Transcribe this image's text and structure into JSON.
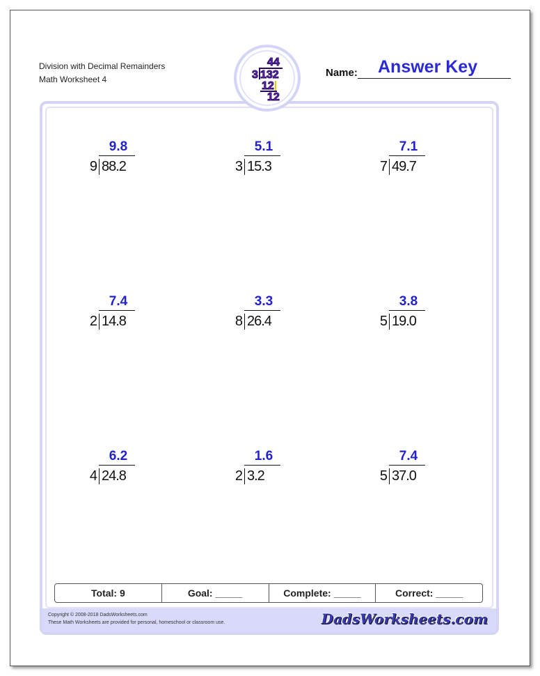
{
  "header": {
    "title": "Division with Decimal Remainders",
    "subtitle": "Math Worksheet 4",
    "name_label": "Name:",
    "answer_key": "Answer Key"
  },
  "problems": [
    {
      "divisor": "9",
      "dividend": "88.2",
      "quotient": "9.8"
    },
    {
      "divisor": "3",
      "dividend": "15.3",
      "quotient": "5.1"
    },
    {
      "divisor": "7",
      "dividend": "49.7",
      "quotient": "7.1"
    },
    {
      "divisor": "2",
      "dividend": "14.8",
      "quotient": "7.4"
    },
    {
      "divisor": "8",
      "dividend": "26.4",
      "quotient": "3.3"
    },
    {
      "divisor": "5",
      "dividend": "19.0",
      "quotient": "3.8"
    },
    {
      "divisor": "4",
      "dividend": "24.8",
      "quotient": "6.2"
    },
    {
      "divisor": "2",
      "dividend": "3.2",
      "quotient": "1.6"
    },
    {
      "divisor": "5",
      "dividend": "37.0",
      "quotient": "7.4"
    }
  ],
  "score": {
    "total": "Total: 9",
    "goal": "Goal: _____",
    "complete": "Complete: _____",
    "correct": "Correct: _____"
  },
  "footer": {
    "copyright": "Copyright © 2008-2018 DadsWorksheets.com",
    "note": "These Math Worksheets are provided for personal, homeschool or classroom use.",
    "brand": "DadsWorksheets.com"
  },
  "colors": {
    "accent": "#2b2bd6",
    "frame": "#d4d4f6"
  }
}
